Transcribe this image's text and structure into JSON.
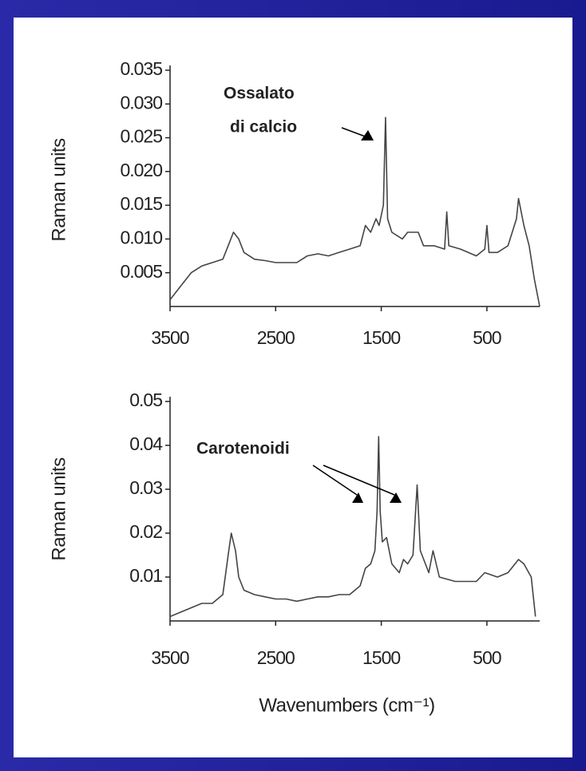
{
  "chart_data": [
    {
      "type": "line",
      "y_label": "Raman units",
      "color": "#444444",
      "annotations": [
        "Ossalato",
        "di calcio"
      ],
      "xlim": [
        3500,
        0
      ],
      "xticks": [
        3500,
        2500,
        1500,
        500
      ],
      "ylim": [
        0,
        0.035
      ],
      "yticks": [
        0.005,
        {
          "value": 0.01,
          "label": "0.010"
        },
        0.015,
        {
          "value": 0.02,
          "label": "0.020"
        },
        0.025,
        {
          "value": 0.03,
          "label": "0.030"
        },
        0.035
      ],
      "x": [
        3500,
        3400,
        3300,
        3200,
        3100,
        3000,
        2950,
        2900,
        2850,
        2800,
        2700,
        2600,
        2500,
        2400,
        2300,
        2200,
        2100,
        2000,
        1900,
        1800,
        1700,
        1650,
        1600,
        1550,
        1520,
        1480,
        1460,
        1440,
        1400,
        1300,
        1250,
        1150,
        1100,
        1000,
        900,
        880,
        860,
        750,
        600,
        520,
        500,
        480,
        400,
        300,
        220,
        200,
        150,
        100,
        50,
        0
      ],
      "values": [
        0.001,
        0.003,
        0.005,
        0.006,
        0.0065,
        0.007,
        0.009,
        0.011,
        0.01,
        0.008,
        0.007,
        0.0068,
        0.0065,
        0.0065,
        0.0065,
        0.0075,
        0.0078,
        0.0075,
        0.008,
        0.0085,
        0.009,
        0.012,
        0.011,
        0.013,
        0.012,
        0.015,
        0.028,
        0.013,
        0.011,
        0.01,
        0.011,
        0.011,
        0.009,
        0.009,
        0.0085,
        0.014,
        0.009,
        0.0085,
        0.0075,
        0.0085,
        0.012,
        0.008,
        0.008,
        0.009,
        0.013,
        0.016,
        0.012,
        0.009,
        0.004,
        0
      ]
    },
    {
      "type": "line",
      "y_label": "Raman units",
      "x_label": "Wavenumbers (cm⁻¹)",
      "color": "#444444",
      "annotations": [
        "Carotenoidi"
      ],
      "xlim": [
        3500,
        0
      ],
      "xticks": [
        3500,
        2500,
        1500,
        500
      ],
      "ylim": [
        0,
        0.05
      ],
      "yticks": [
        0.01,
        0.02,
        0.03,
        0.04,
        0.05
      ],
      "x": [
        3500,
        3400,
        3300,
        3200,
        3100,
        3000,
        2950,
        2920,
        2880,
        2850,
        2800,
        2700,
        2600,
        2500,
        2400,
        2300,
        2200,
        2100,
        2000,
        1900,
        1800,
        1700,
        1650,
        1600,
        1560,
        1540,
        1525,
        1510,
        1490,
        1450,
        1400,
        1330,
        1290,
        1250,
        1200,
        1160,
        1130,
        1050,
        1010,
        950,
        800,
        600,
        520,
        400,
        300,
        200,
        150,
        80,
        40
      ],
      "values": [
        0.001,
        0.002,
        0.003,
        0.004,
        0.004,
        0.006,
        0.015,
        0.02,
        0.016,
        0.01,
        0.007,
        0.006,
        0.0055,
        0.005,
        0.005,
        0.0045,
        0.005,
        0.0055,
        0.0055,
        0.006,
        0.006,
        0.008,
        0.012,
        0.013,
        0.016,
        0.025,
        0.042,
        0.025,
        0.018,
        0.019,
        0.013,
        0.011,
        0.014,
        0.013,
        0.015,
        0.031,
        0.016,
        0.011,
        0.016,
        0.01,
        0.009,
        0.009,
        0.011,
        0.01,
        0.011,
        0.014,
        0.013,
        0.01,
        0.001
      ]
    }
  ]
}
